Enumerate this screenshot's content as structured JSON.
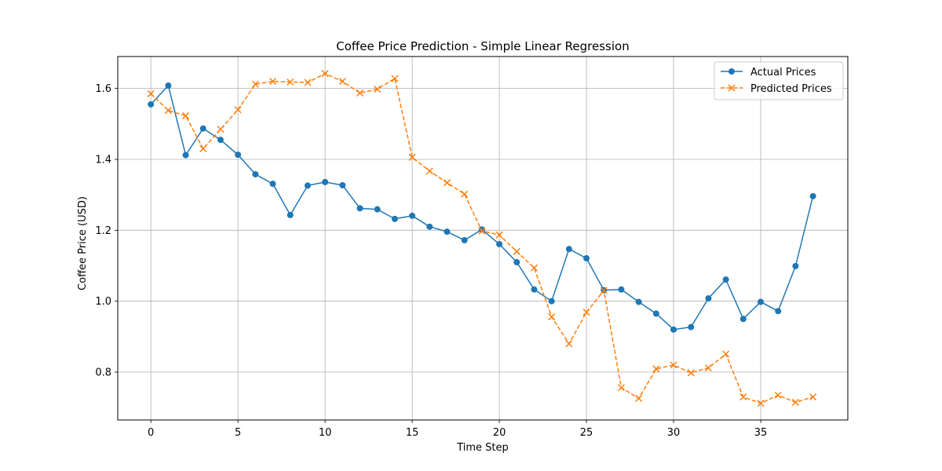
{
  "chart_data": {
    "type": "line",
    "title": "Coffee Price Prediction - Simple Linear Regression",
    "xlabel": "Time Step",
    "ylabel": "Coffee Price (USD)",
    "xlim": [
      -1.9,
      40.0
    ],
    "ylim": [
      0.665,
      1.69
    ],
    "x_ticks": [
      0,
      5,
      10,
      15,
      20,
      25,
      30,
      35
    ],
    "x_tick_labels": [
      "0",
      "5",
      "10",
      "15",
      "20",
      "25",
      "30",
      "35"
    ],
    "y_ticks": [
      0.8,
      1.0,
      1.2,
      1.4,
      1.6
    ],
    "y_tick_labels": [
      "0.8",
      "1.0",
      "1.2",
      "1.4",
      "1.6"
    ],
    "grid": true,
    "legend_position": "top-right",
    "x": [
      0,
      1,
      2,
      3,
      4,
      5,
      6,
      7,
      8,
      9,
      10,
      11,
      12,
      13,
      14,
      15,
      16,
      17,
      18,
      19,
      20,
      21,
      22,
      23,
      24,
      25,
      26,
      27,
      28,
      29,
      30,
      31,
      32,
      33,
      34,
      35,
      36,
      37,
      38
    ],
    "series": [
      {
        "name": "Actual Prices",
        "color": "#1f77b4",
        "line_style": "solid",
        "marker": "circle",
        "values": [
          1.555,
          1.608,
          1.412,
          1.487,
          1.455,
          1.413,
          1.358,
          1.331,
          1.243,
          1.326,
          1.336,
          1.327,
          1.262,
          1.259,
          1.232,
          1.241,
          1.21,
          1.196,
          1.172,
          1.202,
          1.161,
          1.11,
          1.033,
          1.0,
          1.147,
          1.121,
          1.031,
          1.033,
          0.998,
          0.965,
          0.92,
          0.927,
          1.008,
          1.061,
          0.95,
          0.998,
          0.972,
          1.099,
          1.296
        ]
      },
      {
        "name": "Predicted Prices",
        "color": "#ff7f0e",
        "line_style": "dashed",
        "marker": "x",
        "values": [
          1.585,
          1.538,
          1.523,
          1.43,
          1.485,
          1.54,
          1.612,
          1.62,
          1.618,
          1.617,
          1.642,
          1.62,
          1.587,
          1.598,
          1.628,
          1.406,
          1.367,
          1.334,
          1.302,
          1.198,
          1.187,
          1.14,
          1.094,
          0.956,
          0.88,
          0.969,
          1.03,
          0.756,
          0.726,
          0.809,
          0.82,
          0.798,
          0.812,
          0.851,
          0.73,
          0.712,
          0.735,
          0.715,
          0.73
        ]
      }
    ]
  }
}
